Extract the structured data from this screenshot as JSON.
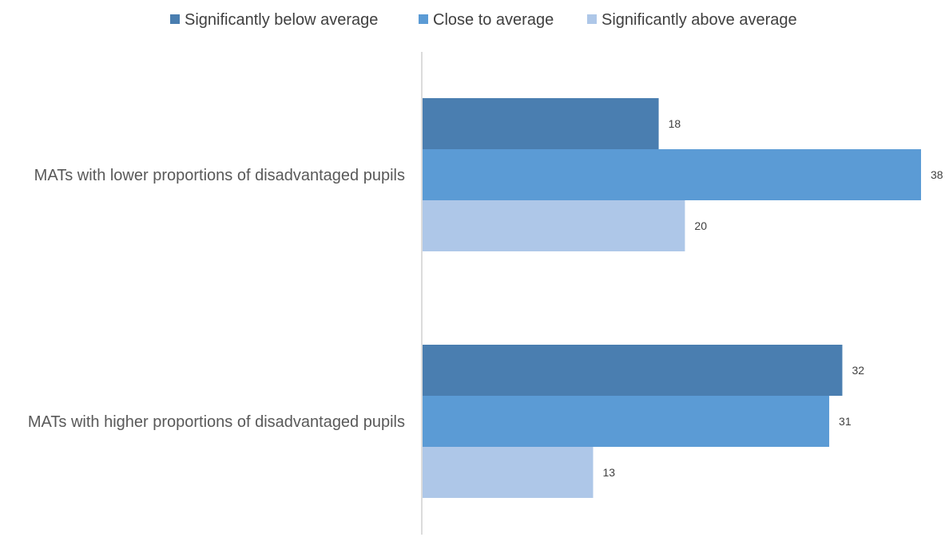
{
  "chart_data": {
    "type": "bar",
    "orientation": "horizontal",
    "categories": [
      "MATs with lower proportions of disadvantaged pupils",
      "MATs with higher proportions of disadvantaged pupils"
    ],
    "series": [
      {
        "name": "Significantly below average",
        "color": "#4a7eb0",
        "values": [
          18,
          32
        ]
      },
      {
        "name": "Close to average",
        "color": "#5b9bd5",
        "values": [
          38,
          31
        ]
      },
      {
        "name": "Significantly above average",
        "color": "#aec7e8",
        "values": [
          20,
          13
        ]
      }
    ],
    "xlim": [
      0,
      38
    ],
    "data_labels": true,
    "legend_position": "top",
    "grid": false
  }
}
